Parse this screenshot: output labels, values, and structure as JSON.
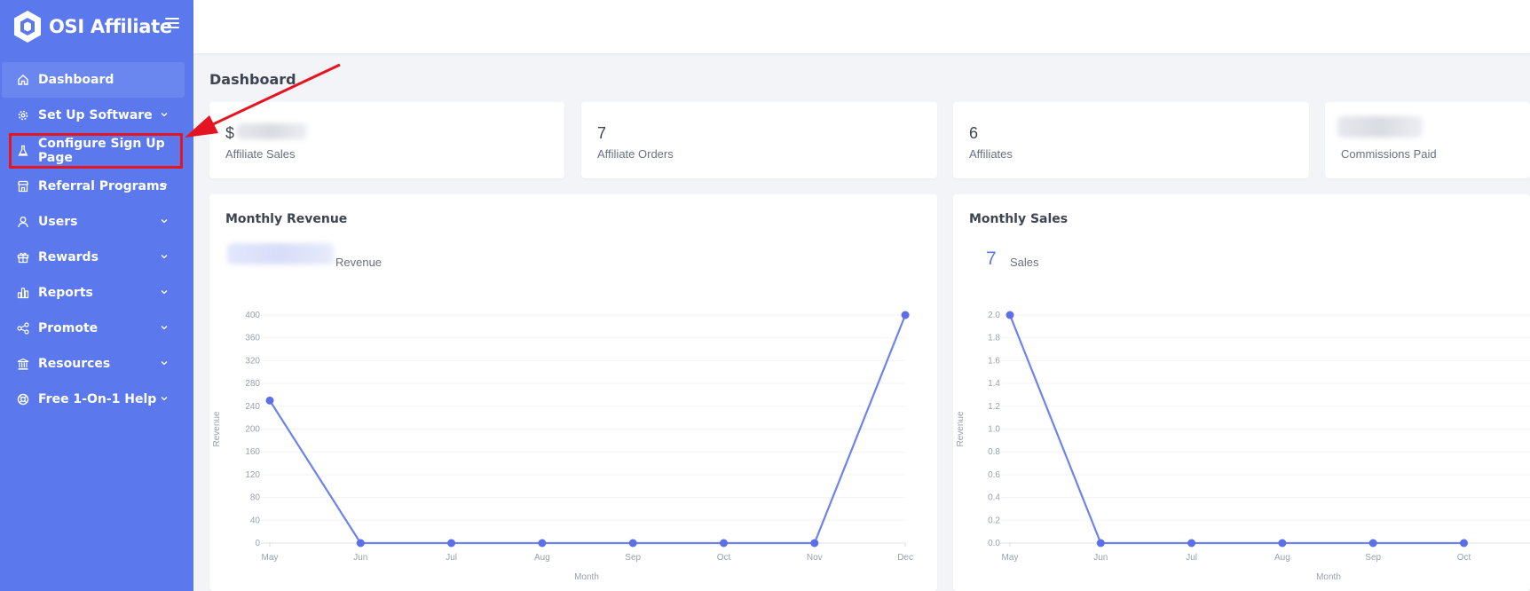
{
  "app": {
    "name": "OSI Affiliate"
  },
  "sidebar": {
    "items": [
      {
        "label": "Dashboard",
        "icon": "home-icon",
        "active": true,
        "has_children": false
      },
      {
        "label": "Set Up Software",
        "icon": "gear-icon",
        "has_children": true
      },
      {
        "label": "Configure Sign Up Page",
        "icon": "flask-icon",
        "highlighted": true,
        "has_children": false
      },
      {
        "label": "Referral Programs",
        "icon": "store-icon",
        "has_children": true
      },
      {
        "label": "Users",
        "icon": "user-icon",
        "has_children": true
      },
      {
        "label": "Rewards",
        "icon": "gift-icon",
        "has_children": true
      },
      {
        "label": "Reports",
        "icon": "bar-chart-icon",
        "has_children": true
      },
      {
        "label": "Promote",
        "icon": "share-icon",
        "has_children": true
      },
      {
        "label": "Resources",
        "icon": "bank-icon",
        "has_children": true
      },
      {
        "label": "Free 1-On-1 Help",
        "icon": "lifebuoy-icon",
        "has_children": true
      }
    ]
  },
  "main": {
    "title": "Dashboard",
    "stats": [
      {
        "value": "$",
        "label": "Affiliate Sales",
        "value_obscured": true
      },
      {
        "value": "7",
        "label": "Affiliate Orders"
      },
      {
        "value": "6",
        "label": "Affiliates"
      },
      {
        "value": "",
        "label": "Commissions Paid",
        "value_obscured": true
      }
    ]
  },
  "charts": {
    "revenue": {
      "title": "Monthly Revenue",
      "summary_label": "Revenue"
    },
    "sales": {
      "title": "Monthly Sales",
      "summary_value": "7",
      "summary_label": "Sales"
    }
  },
  "chart_data": [
    {
      "type": "line",
      "title": "Monthly Revenue",
      "xlabel": "Month",
      "ylabel": "Revenue",
      "categories": [
        "May",
        "Jun",
        "Jul",
        "Aug",
        "Sep",
        "Oct",
        "Nov",
        "Dec"
      ],
      "values": [
        250,
        0,
        0,
        0,
        0,
        0,
        0,
        400
      ],
      "ylim": [
        0,
        400
      ],
      "yticks": [
        "0",
        "40",
        "80",
        "120",
        "160",
        "200",
        "240",
        "280",
        "320",
        "360",
        "400"
      ],
      "color": "#6e82ee",
      "grid": true
    },
    {
      "type": "line",
      "title": "Monthly Sales",
      "xlabel": "Month",
      "ylabel": "Revenue",
      "categories": [
        "May",
        "Jun",
        "Jul",
        "Aug",
        "Sep",
        "Oct"
      ],
      "values": [
        2,
        0,
        0,
        0,
        0,
        0
      ],
      "ylim": [
        0,
        2
      ],
      "yticks": [
        "0.0",
        "0.2",
        "0.4",
        "0.6",
        "0.8",
        "1.0",
        "1.2",
        "1.4",
        "1.6",
        "1.8",
        "2.0"
      ],
      "color": "#6e82ee",
      "grid": true
    }
  ],
  "colors": {
    "sidebar": "#5b79ec",
    "accent": "#5b79ec",
    "highlight": "#e51421"
  }
}
